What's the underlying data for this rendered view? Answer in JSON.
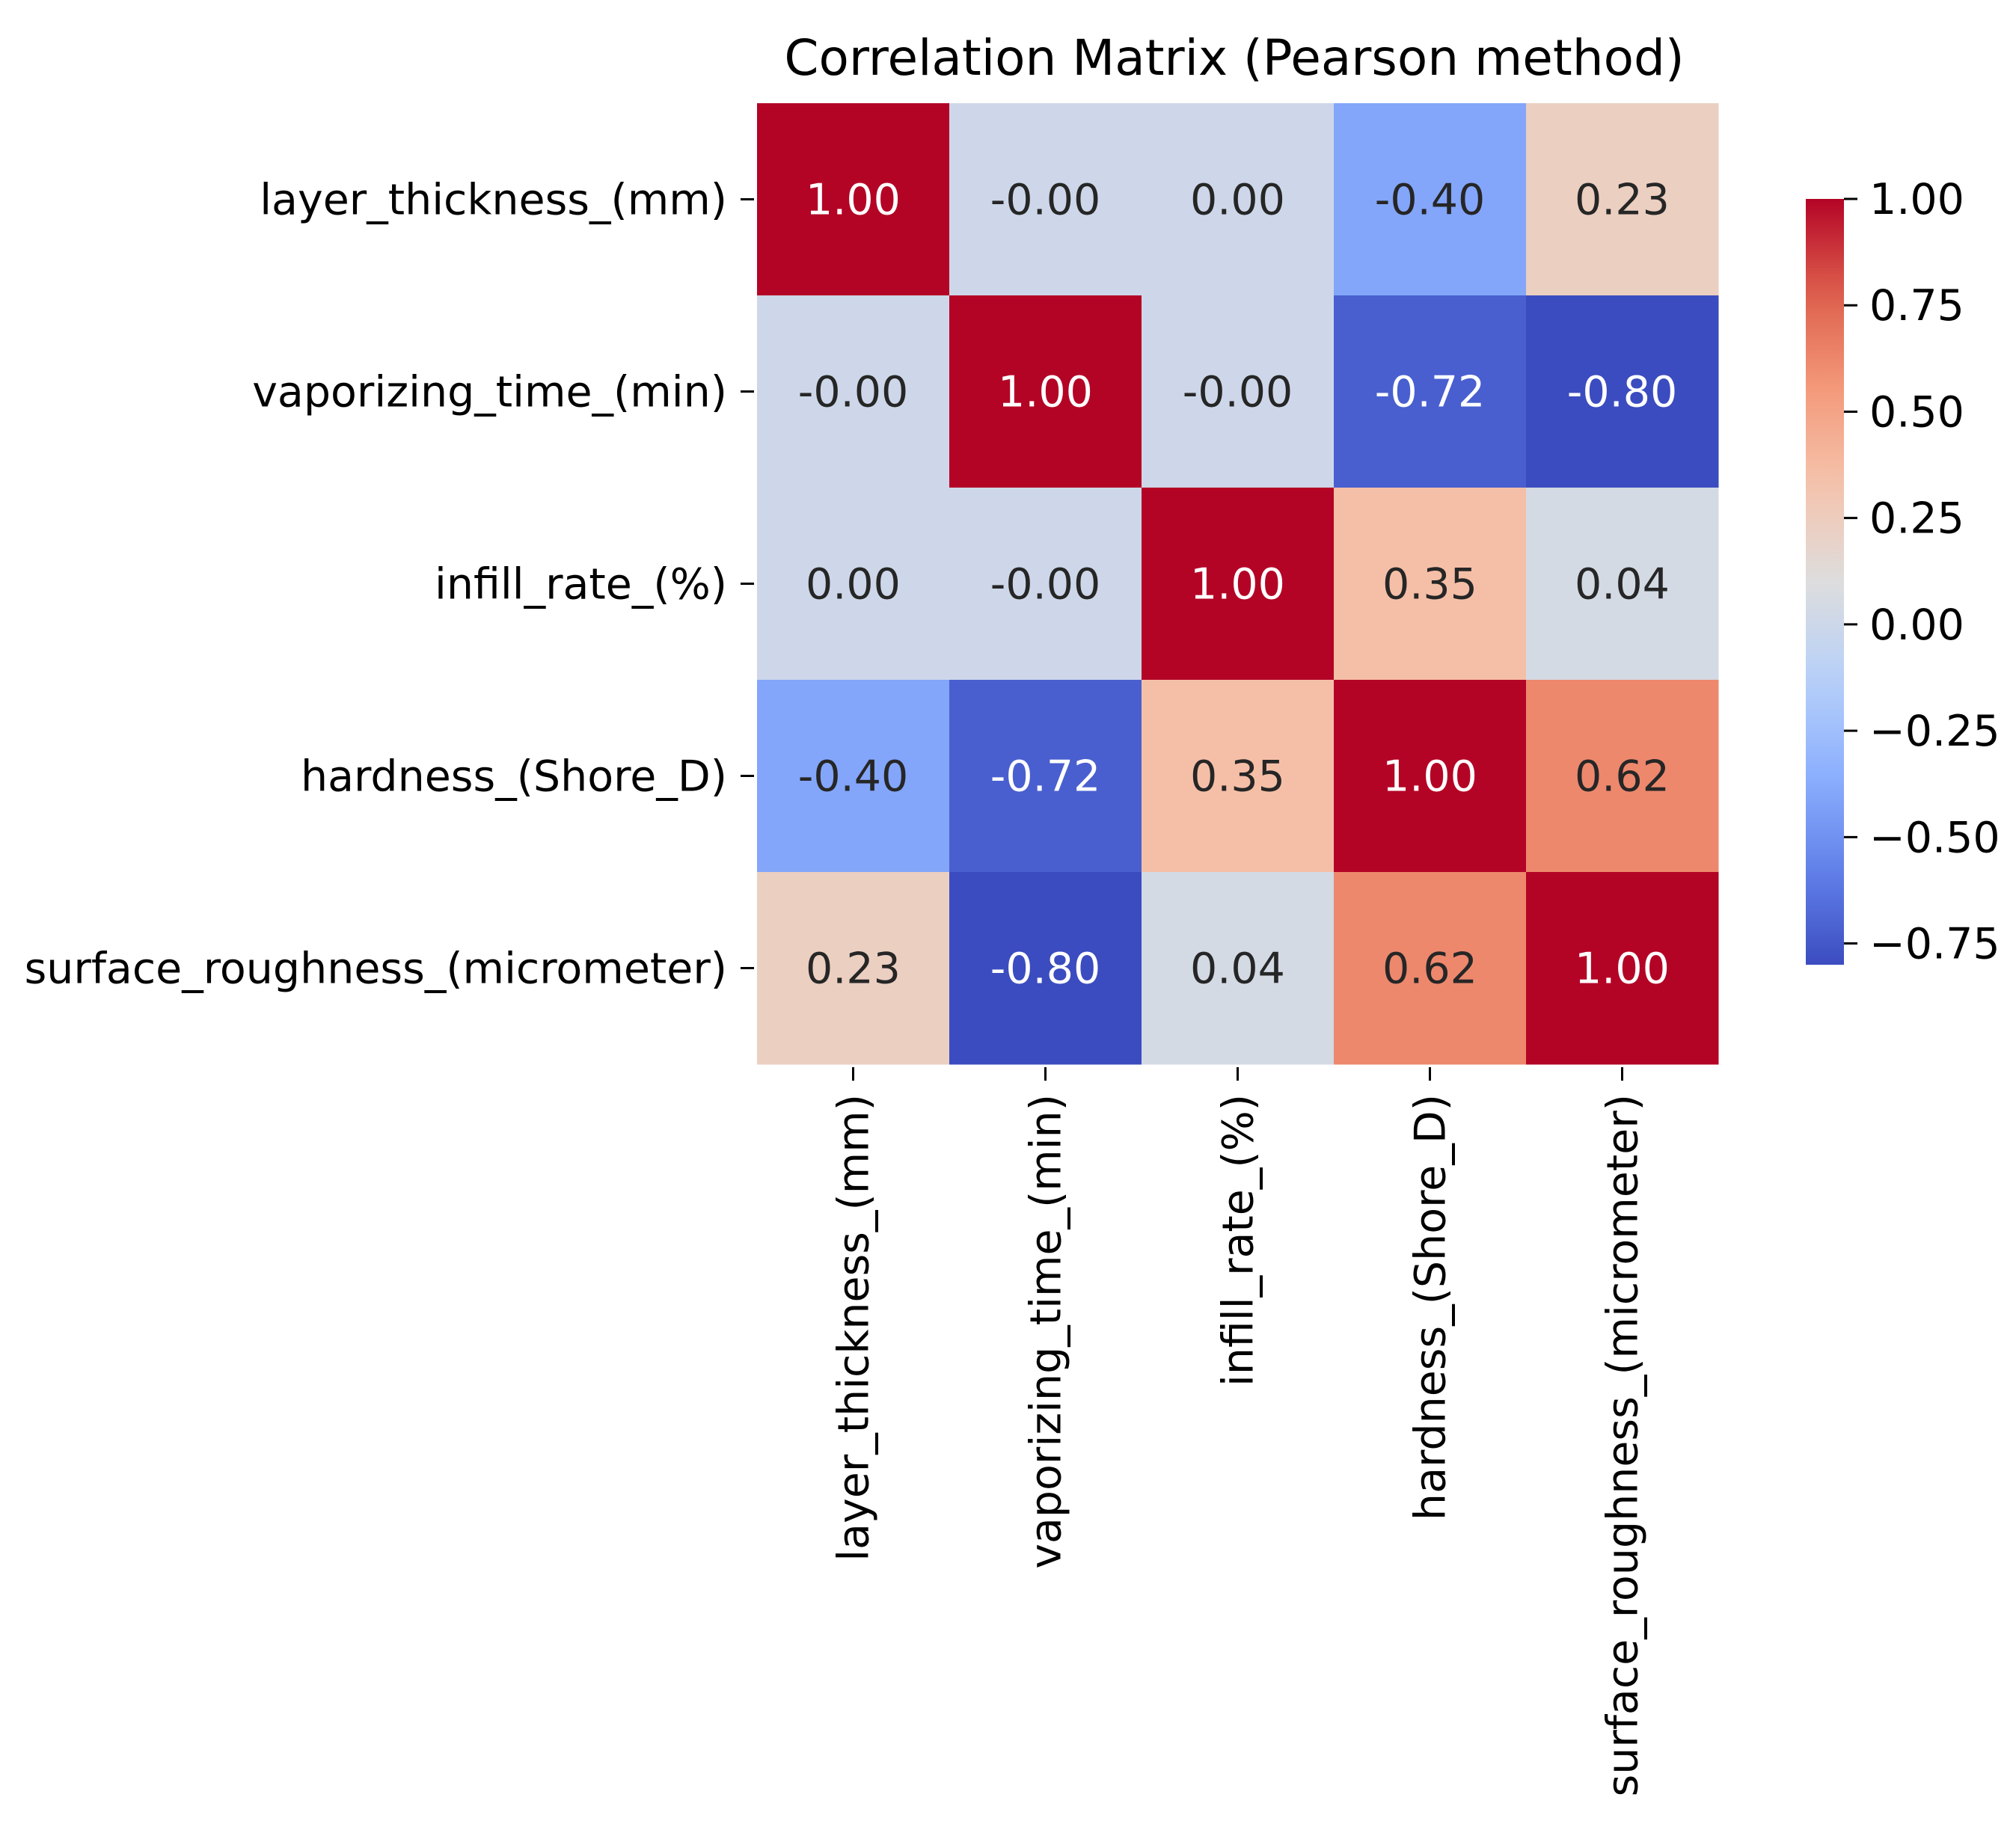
{
  "chart_data": {
    "type": "heatmap",
    "title": "Correlation Matrix (Pearson method)",
    "row_labels": [
      "layer_thickness_(mm)",
      "vaporizing_time_(min)",
      "infill_rate_(%)",
      "hardness_(Shore_D)",
      "surface_roughness_(micrometer)"
    ],
    "column_labels": [
      "layer_thickness_(mm)",
      "vaporizing_time_(min)",
      "infill_rate_(%)",
      "hardness_(Shore_D)",
      "surface_roughness_(micrometer)"
    ],
    "values": [
      [
        1.0,
        -0.0,
        0.0,
        -0.4,
        0.23
      ],
      [
        -0.0,
        1.0,
        -0.0,
        -0.72,
        -0.8
      ],
      [
        0.0,
        -0.0,
        1.0,
        0.35,
        0.04
      ],
      [
        -0.4,
        -0.72,
        0.35,
        1.0,
        0.62
      ],
      [
        0.23,
        -0.8,
        0.04,
        0.62,
        1.0
      ]
    ],
    "annotations": [
      [
        "1.00",
        "-0.00",
        "0.00",
        "-0.40",
        "0.23"
      ],
      [
        "-0.00",
        "1.00",
        "-0.00",
        "-0.72",
        "-0.80"
      ],
      [
        "0.00",
        "-0.00",
        "1.00",
        "0.35",
        "0.04"
      ],
      [
        "-0.40",
        "-0.72",
        "0.35",
        "1.00",
        "0.62"
      ],
      [
        "0.23",
        "-0.80",
        "0.04",
        "0.62",
        "1.00"
      ]
    ],
    "colormap": "coolwarm",
    "colorbar": {
      "range": [
        -0.8,
        1.0
      ],
      "ticks": [
        1.0,
        0.75,
        0.5,
        0.25,
        0.0,
        -0.25,
        -0.5,
        -0.75
      ],
      "tick_labels": [
        "1.00",
        "0.75",
        "0.50",
        "0.25",
        "0.00",
        "−0.25",
        "−0.50",
        "−0.75"
      ],
      "placement": "right"
    }
  }
}
